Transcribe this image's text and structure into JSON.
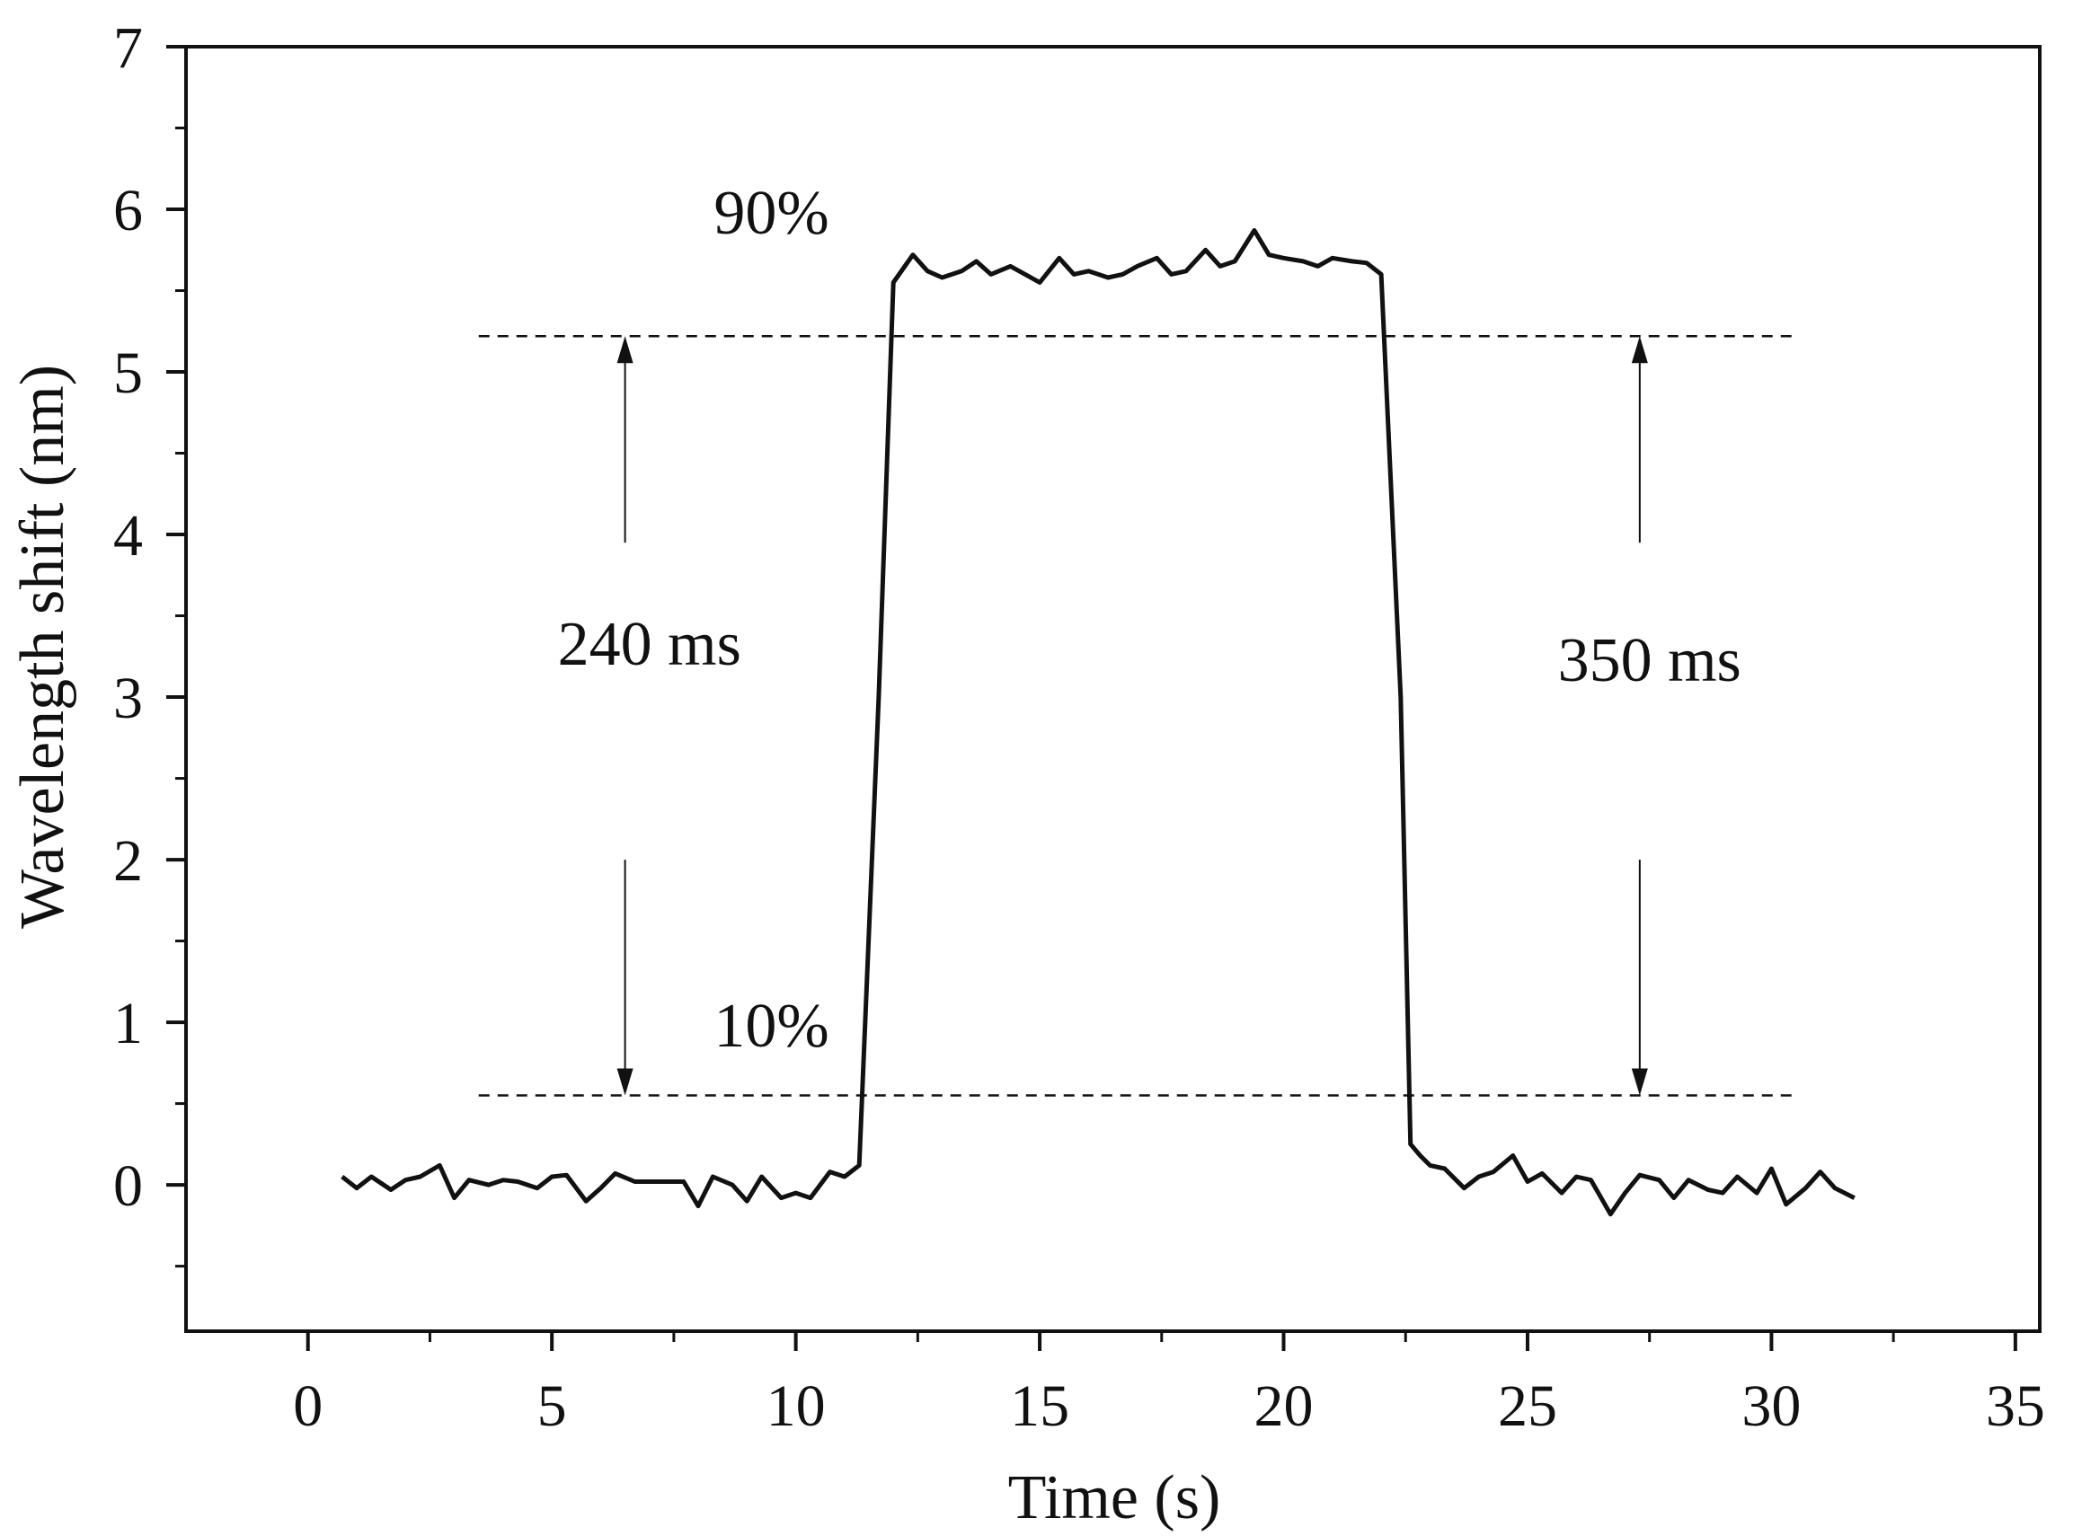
{
  "chart_data": {
    "type": "line",
    "title": "",
    "xlabel": "Time (s)",
    "ylabel": "Wavelength shift (nm)",
    "xlim": [
      -2.5,
      35.5
    ],
    "ylim": [
      -0.9,
      7
    ],
    "xticks": [
      0,
      5,
      10,
      15,
      20,
      25,
      30,
      35
    ],
    "yticks": [
      0,
      1,
      2,
      3,
      4,
      5,
      6,
      7
    ],
    "xtick_labels": [
      "0",
      "5",
      "10",
      "15",
      "20",
      "25",
      "30",
      "35"
    ],
    "ytick_labels": [
      "0",
      "1",
      "2",
      "3",
      "4",
      "5",
      "6",
      "7"
    ],
    "grid": false,
    "series": [
      {
        "name": "Wavelength shift",
        "x": [
          0.7,
          1.0,
          1.3,
          1.7,
          2.0,
          2.3,
          2.7,
          3.0,
          3.3,
          3.7,
          4.0,
          4.3,
          4.7,
          5.0,
          5.3,
          5.7,
          6.0,
          6.3,
          6.7,
          7.0,
          7.3,
          7.7,
          8.0,
          8.3,
          8.7,
          9.0,
          9.3,
          9.7,
          10.0,
          10.3,
          10.7,
          11.0,
          11.3,
          11.7,
          12.0,
          12.4,
          12.7,
          13.0,
          13.4,
          13.7,
          14.0,
          14.4,
          14.7,
          15.0,
          15.4,
          15.7,
          16.0,
          16.4,
          16.7,
          17.0,
          17.4,
          17.7,
          18.0,
          18.4,
          18.7,
          19.0,
          19.4,
          19.7,
          20.0,
          20.4,
          20.7,
          21.0,
          21.4,
          21.7,
          22.0,
          22.4,
          22.6,
          22.8,
          23.0,
          23.3,
          23.7,
          24.0,
          24.3,
          24.7,
          25.0,
          25.3,
          25.7,
          26.0,
          26.3,
          26.7,
          27.0,
          27.3,
          27.7,
          28.0,
          28.3,
          28.7,
          29.0,
          29.3,
          29.7,
          30.0,
          30.3,
          30.7,
          31.0,
          31.3,
          31.7
        ],
        "y": [
          0.05,
          -0.02,
          0.05,
          -0.03,
          0.03,
          0.05,
          0.12,
          -0.08,
          0.03,
          0.0,
          0.03,
          0.02,
          -0.02,
          0.05,
          0.06,
          -0.1,
          -0.02,
          0.07,
          0.02,
          0.02,
          0.02,
          0.02,
          -0.13,
          0.05,
          0.0,
          -0.1,
          0.05,
          -0.08,
          -0.05,
          -0.08,
          0.08,
          0.05,
          0.12,
          3.0,
          5.55,
          5.72,
          5.62,
          5.58,
          5.62,
          5.68,
          5.6,
          5.65,
          5.6,
          5.55,
          5.7,
          5.6,
          5.62,
          5.58,
          5.6,
          5.65,
          5.7,
          5.6,
          5.62,
          5.75,
          5.65,
          5.68,
          5.87,
          5.72,
          5.7,
          5.68,
          5.65,
          5.7,
          5.68,
          5.67,
          5.6,
          3.0,
          0.25,
          0.18,
          0.12,
          0.1,
          -0.02,
          0.05,
          0.08,
          0.18,
          0.02,
          0.07,
          -0.05,
          0.05,
          0.03,
          -0.18,
          -0.05,
          0.06,
          0.03,
          -0.08,
          0.03,
          -0.03,
          -0.05,
          0.05,
          -0.05,
          0.1,
          -0.12,
          -0.02,
          0.08,
          -0.02,
          -0.08
        ]
      }
    ],
    "reference_lines": [
      {
        "name": "90% level",
        "y": 5.22,
        "x_start": 3.5,
        "x_end": 30.5,
        "style": "dashed"
      },
      {
        "name": "10% level",
        "y": 0.55,
        "x_start": 3.5,
        "x_end": 30.5,
        "style": "dashed"
      }
    ],
    "annotations": [
      {
        "text": "90%",
        "x": 9.5,
        "y": 5.85
      },
      {
        "text": "10%",
        "x": 9.5,
        "y": 0.85
      },
      {
        "text": "240 ms",
        "x": 7.0,
        "y": 3.2
      },
      {
        "text": "350 ms",
        "x": 27.5,
        "y": 3.1
      }
    ],
    "arrows": [
      {
        "name": "rise-upper-arrow",
        "x": 6.5,
        "from_y": 3.95,
        "to_y": 5.22
      },
      {
        "name": "rise-lower-arrow",
        "x": 6.5,
        "from_y": 2.0,
        "to_y": 0.55
      },
      {
        "name": "fall-upper-arrow",
        "x": 27.3,
        "from_y": 3.95,
        "to_y": 5.22
      },
      {
        "name": "fall-lower-arrow",
        "x": 27.3,
        "from_y": 2.0,
        "to_y": 0.55
      }
    ]
  }
}
